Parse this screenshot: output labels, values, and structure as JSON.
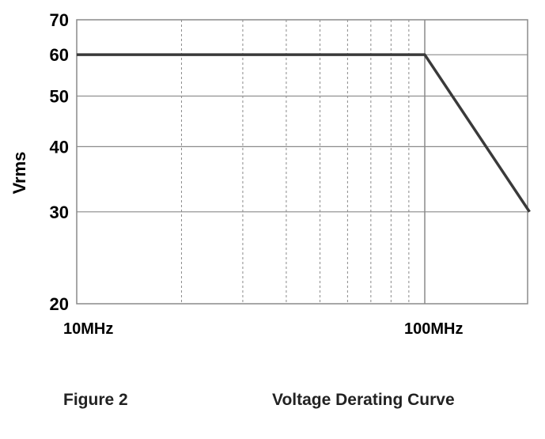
{
  "chart_data": {
    "type": "line",
    "title": "",
    "ylabel": "Vrms",
    "xlabel": "",
    "x_scale": "log",
    "y_scale": "log",
    "xlim_hz": [
      10000000,
      200000000
    ],
    "ylim": [
      20,
      70
    ],
    "x_tick_labels": [
      {
        "value": 10000000,
        "label": "10MHz"
      },
      {
        "value": 100000000,
        "label": "100MHz"
      }
    ],
    "y_ticks": [
      20,
      30,
      40,
      50,
      60,
      70
    ],
    "x_minor_grid_hz": [
      20000000,
      30000000,
      40000000,
      50000000,
      60000000,
      70000000,
      80000000,
      90000000
    ],
    "x_major_grid_hz": [
      100000000
    ],
    "series": [
      {
        "color": "#3a3a3a",
        "points": [
          {
            "x": 10000000,
            "y": 60
          },
          {
            "x": 100000000,
            "y": 60
          },
          {
            "x": 200000000,
            "y": 30
          }
        ]
      }
    ],
    "grid": true,
    "legend": "none"
  },
  "caption": {
    "figure_label": "Figure 2",
    "figure_title": "Voltage Derating Curve"
  }
}
